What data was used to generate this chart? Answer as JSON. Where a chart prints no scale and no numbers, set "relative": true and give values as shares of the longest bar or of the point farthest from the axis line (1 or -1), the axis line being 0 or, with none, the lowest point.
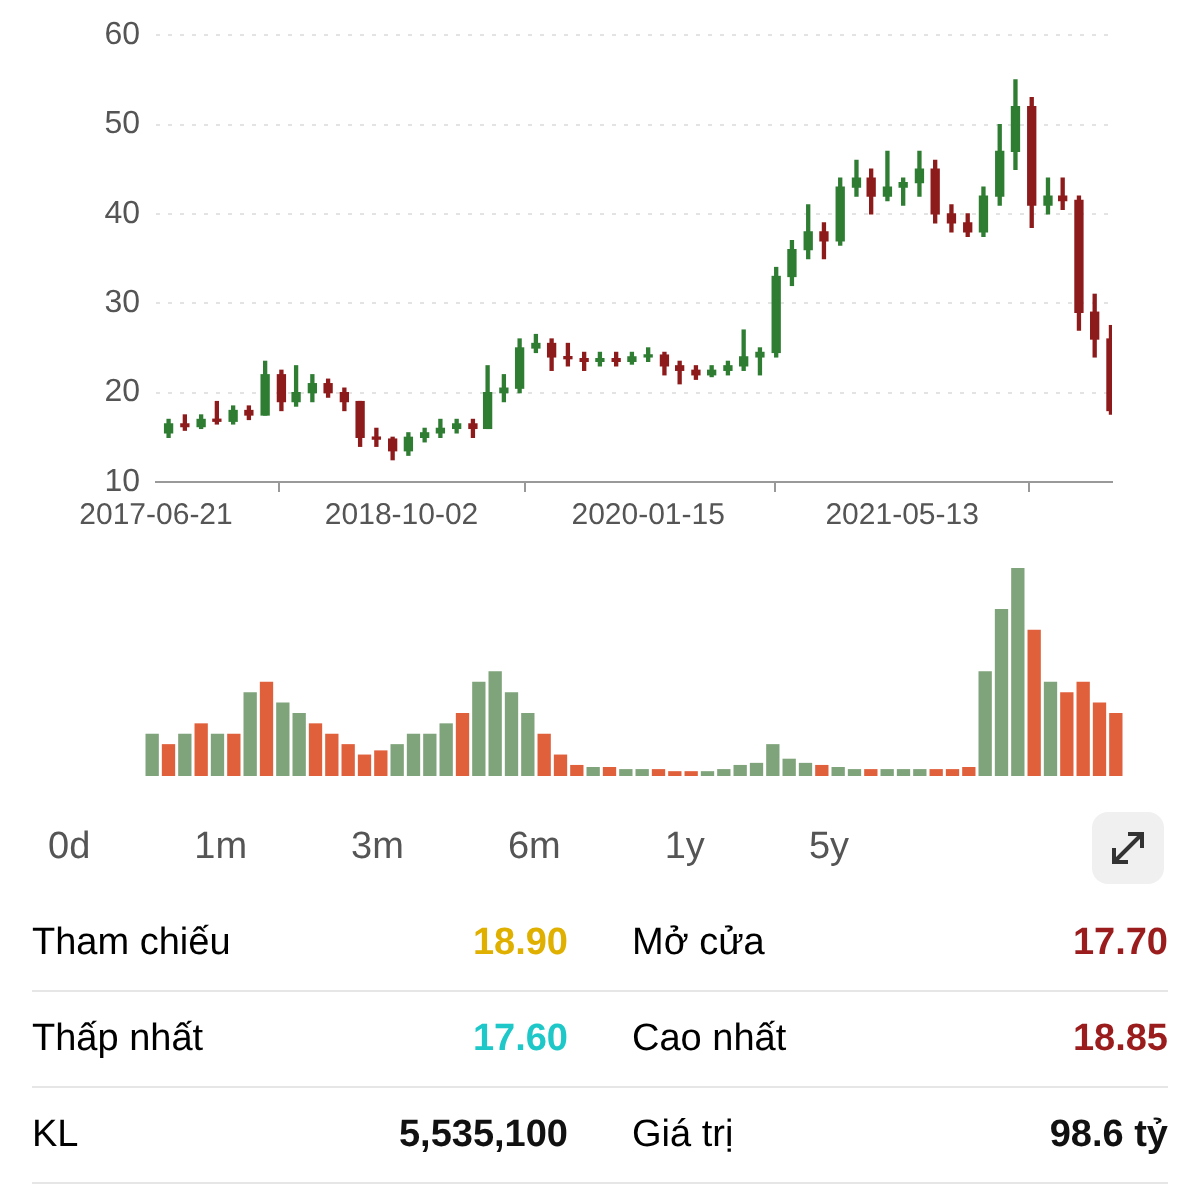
{
  "chart_data": [
    {
      "type": "candlestick",
      "xlim": [
        "2017-06-21",
        "2022-06-17"
      ],
      "xticks": [
        "2017-06-21",
        "2018-10-02",
        "2020-01-15",
        "2021-05-13"
      ],
      "ylim": [
        10,
        60
      ],
      "yticks": [
        10,
        20,
        30,
        40,
        50,
        60
      ],
      "grid": "y",
      "x": [
        "2017-07-15",
        "2017-08-15",
        "2017-09-15",
        "2017-10-15",
        "2017-11-15",
        "2017-12-15",
        "2018-01-15",
        "2018-02-15",
        "2018-03-15",
        "2018-04-15",
        "2018-05-15",
        "2018-06-15",
        "2018-07-15",
        "2018-08-15",
        "2018-09-15",
        "2018-10-15",
        "2018-11-15",
        "2018-12-15",
        "2019-01-15",
        "2019-02-15",
        "2019-03-15",
        "2019-04-15",
        "2019-05-15",
        "2019-06-15",
        "2019-07-15",
        "2019-08-15",
        "2019-09-15",
        "2019-10-15",
        "2019-11-15",
        "2019-12-15",
        "2020-01-15",
        "2020-02-15",
        "2020-03-15",
        "2020-04-15",
        "2020-05-15",
        "2020-06-15",
        "2020-07-15",
        "2020-08-15",
        "2020-09-15",
        "2020-10-15",
        "2020-11-15",
        "2020-12-15",
        "2021-01-15",
        "2021-02-15",
        "2021-03-15",
        "2021-04-15",
        "2021-05-15",
        "2021-06-15",
        "2021-07-15",
        "2021-08-15",
        "2021-09-15",
        "2021-10-15",
        "2021-11-15",
        "2021-12-15",
        "2022-01-15",
        "2022-02-15",
        "2022-03-15",
        "2022-04-15",
        "2022-05-15",
        "2022-06-15"
      ],
      "ohlc": [
        [
          15.5,
          17,
          15,
          16.5
        ],
        [
          16.5,
          17.5,
          15.8,
          16.2
        ],
        [
          16.2,
          17.5,
          16,
          17
        ],
        [
          17,
          19,
          16.5,
          16.8
        ],
        [
          16.8,
          18.5,
          16.5,
          18
        ],
        [
          18,
          18.5,
          17,
          17.5
        ],
        [
          17.5,
          23.5,
          17.5,
          22
        ],
        [
          22,
          22.5,
          18,
          19
        ],
        [
          19,
          23,
          18.5,
          20
        ],
        [
          20,
          22,
          19,
          21
        ],
        [
          21,
          21.5,
          19.5,
          20
        ],
        [
          20,
          20.5,
          18,
          19
        ],
        [
          19,
          19,
          14,
          15
        ],
        [
          15,
          16,
          14,
          14.8
        ],
        [
          14.8,
          15,
          12.5,
          13.5
        ],
        [
          13.5,
          15.5,
          13,
          15
        ],
        [
          15,
          16,
          14.5,
          15.5
        ],
        [
          15.5,
          17,
          15,
          16
        ],
        [
          16,
          17,
          15.5,
          16.5
        ],
        [
          16.5,
          17,
          15,
          16
        ],
        [
          16,
          23,
          16,
          20
        ],
        [
          20,
          22,
          19,
          20.5
        ],
        [
          20.5,
          26,
          20,
          25
        ],
        [
          25,
          26.5,
          24.5,
          25.5
        ],
        [
          25.5,
          26,
          22.5,
          24
        ],
        [
          24,
          25.5,
          23,
          23.8
        ],
        [
          23.8,
          24.5,
          22.5,
          23.5
        ],
        [
          23.5,
          24.5,
          23,
          23.8
        ],
        [
          23.8,
          24.5,
          23,
          23.5
        ],
        [
          23.5,
          24.5,
          23.2,
          24
        ],
        [
          24,
          25,
          23.5,
          24.2
        ],
        [
          24.2,
          24.5,
          22,
          23
        ],
        [
          23,
          23.5,
          21,
          22.5
        ],
        [
          22.5,
          23,
          21.5,
          22
        ],
        [
          22,
          23,
          21.8,
          22.5
        ],
        [
          22.5,
          23.5,
          22,
          23
        ],
        [
          23,
          27,
          22.5,
          24
        ],
        [
          24,
          25,
          22,
          24.5
        ],
        [
          24.5,
          34,
          24,
          33
        ],
        [
          33,
          37,
          32,
          36
        ],
        [
          36,
          41,
          35,
          38
        ],
        [
          38,
          39,
          35,
          37
        ],
        [
          37,
          44,
          36.5,
          43
        ],
        [
          43,
          46,
          42,
          44
        ],
        [
          44,
          45,
          40,
          42
        ],
        [
          42,
          47,
          41.5,
          43
        ],
        [
          43,
          44,
          41,
          43.5
        ],
        [
          43.5,
          47,
          42,
          45
        ],
        [
          45,
          46,
          39,
          40
        ],
        [
          40,
          41,
          38,
          39
        ],
        [
          39,
          40,
          37.5,
          38
        ],
        [
          38,
          43,
          37.5,
          42
        ],
        [
          42,
          50,
          41,
          47
        ],
        [
          47,
          55,
          45,
          52
        ],
        [
          52,
          53,
          38.5,
          41
        ],
        [
          41,
          44,
          40,
          42
        ],
        [
          42,
          44,
          40.5,
          41.5
        ],
        [
          41.5,
          42,
          27,
          29
        ],
        [
          29,
          31,
          24,
          26
        ],
        [
          26,
          27.5,
          17.6,
          18
        ]
      ],
      "colors": [
        "#2e7d32",
        "#8e1b1b",
        "#2e7d32",
        "#8e1b1b",
        "#2e7d32",
        "#8e1b1b",
        "#2e7d32",
        "#8e1b1b",
        "#2e7d32",
        "#2e7d32",
        "#8e1b1b",
        "#8e1b1b",
        "#8e1b1b",
        "#8e1b1b",
        "#8e1b1b",
        "#2e7d32",
        "#2e7d32",
        "#2e7d32",
        "#2e7d32",
        "#8e1b1b",
        "#2e7d32",
        "#2e7d32",
        "#2e7d32",
        "#2e7d32",
        "#8e1b1b",
        "#8e1b1b",
        "#8e1b1b",
        "#2e7d32",
        "#8e1b1b",
        "#2e7d32",
        "#2e7d32",
        "#8e1b1b",
        "#8e1b1b",
        "#8e1b1b",
        "#2e7d32",
        "#2e7d32",
        "#2e7d32",
        "#2e7d32",
        "#2e7d32",
        "#2e7d32",
        "#2e7d32",
        "#8e1b1b",
        "#2e7d32",
        "#2e7d32",
        "#8e1b1b",
        "#2e7d32",
        "#2e7d32",
        "#2e7d32",
        "#8e1b1b",
        "#8e1b1b",
        "#8e1b1b",
        "#2e7d32",
        "#2e7d32",
        "#2e7d32",
        "#8e1b1b",
        "#2e7d32",
        "#8e1b1b",
        "#8e1b1b",
        "#8e1b1b",
        "#8e1b1b"
      ]
    },
    {
      "type": "bar",
      "relative": true,
      "categories": [
        null,
        null,
        null,
        null,
        null,
        null,
        null,
        null,
        null,
        null,
        null,
        null,
        null,
        null,
        null,
        null,
        null,
        null,
        null,
        null,
        null,
        null,
        null,
        null,
        null,
        null,
        null,
        null,
        null,
        null,
        null,
        null,
        null,
        null,
        null,
        null,
        null,
        null,
        null,
        null,
        null,
        null,
        null,
        null,
        null,
        null,
        null,
        null,
        null,
        null,
        null,
        null,
        null,
        null,
        null,
        null,
        null,
        null,
        null,
        null
      ],
      "values": [
        0.2,
        0.15,
        0.2,
        0.25,
        0.2,
        0.2,
        0.4,
        0.45,
        0.35,
        0.3,
        0.25,
        0.2,
        0.15,
        0.1,
        0.12,
        0.15,
        0.2,
        0.2,
        0.25,
        0.3,
        0.45,
        0.5,
        0.4,
        0.3,
        0.2,
        0.1,
        0.05,
        0.04,
        0.04,
        0.03,
        0.03,
        0.03,
        0.02,
        0.02,
        0.02,
        0.03,
        0.05,
        0.06,
        0.15,
        0.08,
        0.06,
        0.05,
        0.04,
        0.03,
        0.03,
        0.03,
        0.03,
        0.03,
        0.03,
        0.03,
        0.04,
        0.5,
        0.8,
        1,
        0.7,
        0.45,
        0.4,
        0.45,
        0.35,
        0.3
      ],
      "colors": [
        "#7fa37a",
        "#e0603c",
        "#7fa37a",
        "#e0603c",
        "#7fa37a",
        "#e0603c",
        "#7fa37a",
        "#e0603c",
        "#7fa37a",
        "#7fa37a",
        "#e0603c",
        "#e0603c",
        "#e0603c",
        "#e0603c",
        "#e0603c",
        "#7fa37a",
        "#7fa37a",
        "#7fa37a",
        "#7fa37a",
        "#e0603c",
        "#7fa37a",
        "#7fa37a",
        "#7fa37a",
        "#7fa37a",
        "#e0603c",
        "#e0603c",
        "#e0603c",
        "#7fa37a",
        "#e0603c",
        "#7fa37a",
        "#7fa37a",
        "#e0603c",
        "#e0603c",
        "#e0603c",
        "#7fa37a",
        "#7fa37a",
        "#7fa37a",
        "#7fa37a",
        "#7fa37a",
        "#7fa37a",
        "#7fa37a",
        "#e0603c",
        "#7fa37a",
        "#7fa37a",
        "#e0603c",
        "#7fa37a",
        "#7fa37a",
        "#7fa37a",
        "#e0603c",
        "#e0603c",
        "#e0603c",
        "#7fa37a",
        "#7fa37a",
        "#7fa37a",
        "#e0603c",
        "#7fa37a",
        "#e0603c",
        "#e0603c",
        "#e0603c",
        "#e0603c"
      ]
    },
    {
      "type": "other",
      "annotations": [
        "0d",
        "1m",
        "3m",
        "6m",
        "1y",
        "5y"
      ],
      "categories": [
        "Tham chiếu",
        "Mở cửa",
        "Thấp nhất",
        "Cao nhất",
        "KL",
        "Giá trị"
      ],
      "value_labels": [
        "18.90",
        "17.70",
        "17.60",
        "18.85",
        "5,535,100",
        "98.6 tỷ"
      ],
      "colors": [
        "#e0b000",
        "#9b1c1c",
        "#1fc8c8",
        "#9b1c1c",
        "#111111",
        "#111111"
      ]
    }
  ]
}
